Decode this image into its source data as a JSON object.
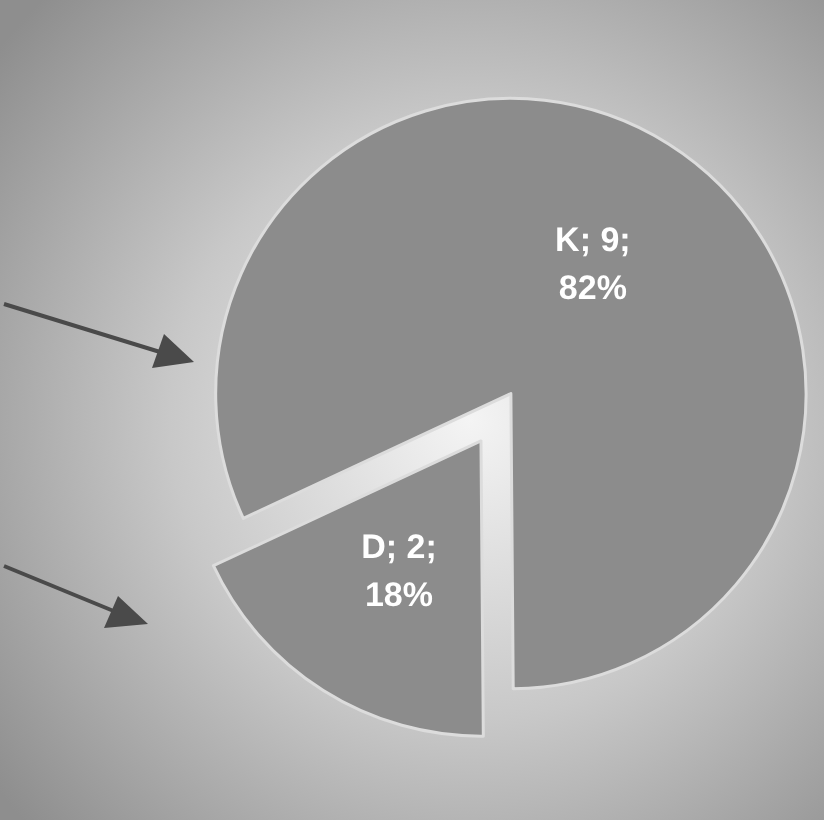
{
  "chart_data": {
    "type": "pie",
    "categories": [
      "K",
      "D"
    ],
    "values": [
      9,
      2
    ],
    "colors": [
      "#8c8c8c",
      "#8c8c8c"
    ],
    "value_labels": [
      "; 9; 82%",
      "; 2; 18%"
    ]
  }
}
